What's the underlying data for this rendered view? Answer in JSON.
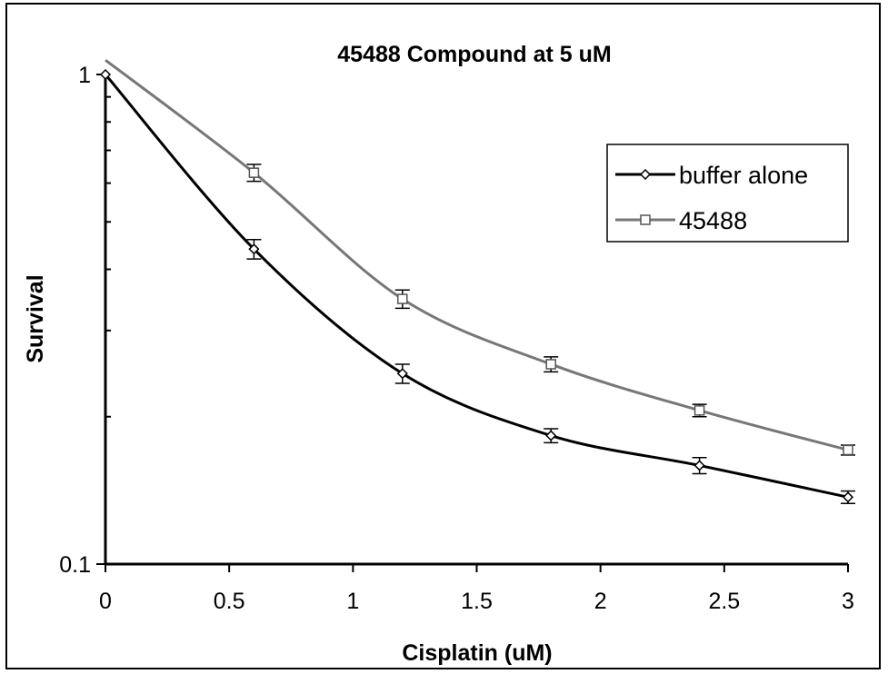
{
  "chart_data": {
    "type": "line",
    "title": "45488 Compound at 5 uM",
    "xlabel": "Cisplatin (uM)",
    "ylabel": "Survival",
    "xlim": [
      0,
      3
    ],
    "ylim": [
      0.1,
      1
    ],
    "yscale": "log",
    "x_ticks": [
      "0",
      "0.5",
      "1",
      "1.5",
      "2",
      "2.5",
      "3"
    ],
    "y_ticks": [
      "1",
      "0.1"
    ],
    "grid": false,
    "legend_position": "top-right",
    "series": [
      {
        "name": "buffer alone",
        "marker": "diamond",
        "color": "#000000",
        "x": [
          0,
          0.6,
          1.2,
          1.8,
          2.4,
          3
        ],
        "y": [
          1.0,
          0.44,
          0.245,
          0.183,
          0.159,
          0.137
        ],
        "error": [
          0.0,
          0.02,
          0.011,
          0.006,
          0.006,
          0.004
        ]
      },
      {
        "name": "45488",
        "marker": "square",
        "color": "#777777",
        "x": [
          0,
          0.6,
          1.2,
          1.8,
          2.4,
          3
        ],
        "y": [
          1.07,
          0.63,
          0.348,
          0.256,
          0.206,
          0.171
        ],
        "error": [
          0.0,
          0.025,
          0.015,
          0.009,
          0.006,
          0.004
        ]
      }
    ]
  }
}
